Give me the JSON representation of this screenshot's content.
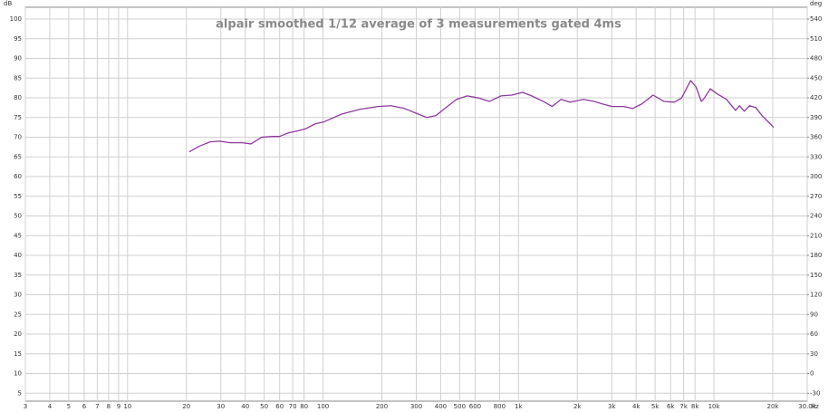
{
  "chart_data": {
    "type": "line",
    "title": "alpair smoothed 1/12 average of 3 measurements gated 4ms",
    "y_unit": "dB",
    "y2_unit": "deg",
    "x_unit": "Hz",
    "xscale": "log",
    "grid": true,
    "color": "#8e3a9e",
    "xlim": [
      3,
      30000
    ],
    "ylim": [
      3,
      103
    ],
    "y2lim": [
      -42,
      558
    ],
    "xticks": [
      3,
      4,
      5,
      6,
      7,
      8,
      9,
      10,
      20,
      30,
      40,
      50,
      60,
      70,
      80,
      100,
      200,
      300,
      400,
      500,
      600,
      800,
      {
        "value": 1000,
        "label": "1k"
      },
      {
        "value": 2000,
        "label": "2k"
      },
      {
        "value": 3000,
        "label": "3k"
      },
      {
        "value": 4000,
        "label": "4k"
      },
      {
        "value": 5000,
        "label": "5k"
      },
      {
        "value": 6000,
        "label": "6k"
      },
      {
        "value": 7000,
        "label": "7k"
      },
      {
        "value": 8000,
        "label": "8k"
      },
      {
        "value": 10000,
        "label": "10k"
      },
      {
        "value": 20000,
        "label": "20k"
      },
      {
        "value": 30000,
        "label": "30.0k"
      }
    ],
    "yticks": [
      5,
      10,
      15,
      20,
      25,
      30,
      35,
      40,
      45,
      50,
      55,
      60,
      65,
      70,
      75,
      80,
      85,
      90,
      95,
      100
    ],
    "y2ticks": [
      -30,
      0,
      30,
      60,
      90,
      120,
      150,
      180,
      210,
      240,
      270,
      300,
      330,
      360,
      390,
      420,
      450,
      480,
      510,
      540
    ],
    "x": [
      20.7,
      23.2,
      26.4,
      29.3,
      33.6,
      38.5,
      42.8,
      48.5,
      55.1,
      59.9,
      66.5,
      74,
      82,
      91.2,
      101,
      125,
      155,
      191,
      223,
      261,
      306,
      340,
      378,
      420,
      482,
      547,
      620,
      711,
      815,
      925,
      1050,
      1167,
      1337,
      1486,
      1652,
      1834,
      2148,
      2438,
      2709,
      3009,
      3451,
      3832,
      4258,
      4884,
      5538,
      6285,
      6839,
      7598,
      8093,
      8623,
      8897,
      9576,
      10400,
      11600,
      12900,
      13500,
      14300,
      15200,
      16400,
      17600,
      19600,
      20200
    ],
    "values": [
      66.3,
      67.7,
      68.8,
      69,
      68.6,
      68.6,
      68.3,
      70,
      70.2,
      70.2,
      71.1,
      71.6,
      72.2,
      73.4,
      73.9,
      75.9,
      77.1,
      77.8,
      78,
      77.3,
      75.9,
      75,
      75.5,
      77.3,
      79.6,
      80.5,
      80,
      79.1,
      80.5,
      80.7,
      81.4,
      80.5,
      79.1,
      77.8,
      79.6,
      78.9,
      79.6,
      79.1,
      78.4,
      77.8,
      77.8,
      77.3,
      78.4,
      80.7,
      79.1,
      78.9,
      80,
      84.4,
      82.8,
      79.1,
      79.8,
      82.3,
      81,
      79.6,
      76.8,
      78,
      76.6,
      78,
      77.5,
      75.5,
      73.2,
      72.5
    ]
  }
}
